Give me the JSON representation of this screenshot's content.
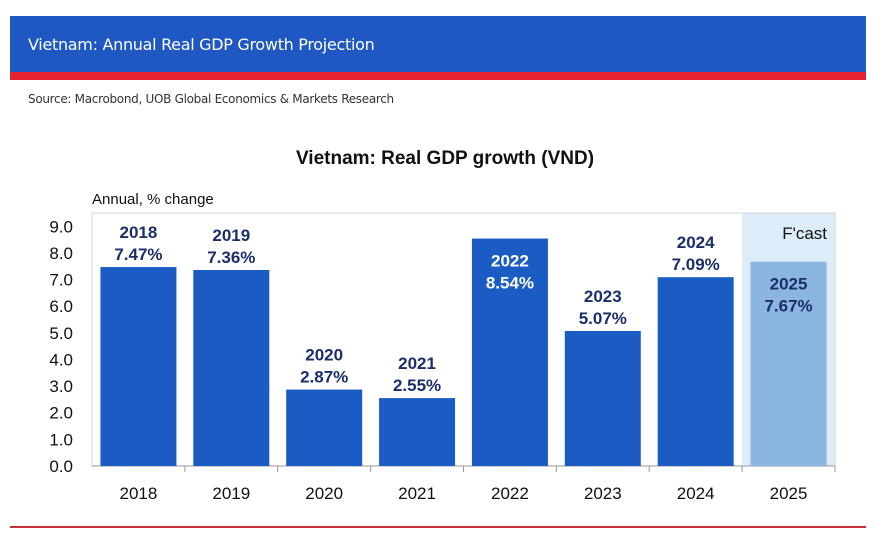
{
  "header": {
    "title": "Vietnam: Annual Real GDP Growth Projection",
    "source": "Source: Macrobond, UOB Global Economics & Markets Research"
  },
  "colors": {
    "banner": "#1f57c3",
    "accent_red": "#e4232e",
    "bar": "#1a5cc4",
    "forecast_bar": "#8ab6e0",
    "forecast_shade": "#dcecf8",
    "label_dark": "#1b2e6b"
  },
  "chart_data": {
    "type": "bar",
    "title": "Vietnam: Real GDP growth (VND)",
    "ylabel": "Annual, % change",
    "xlabel": "",
    "categories": [
      "2018",
      "2019",
      "2020",
      "2021",
      "2022",
      "2023",
      "2024",
      "2025"
    ],
    "values": [
      7.47,
      7.36,
      2.87,
      2.55,
      8.54,
      5.07,
      7.09,
      7.67
    ],
    "data_labels": [
      "7.47%",
      "7.36%",
      "2.87%",
      "2.55%",
      "8.54%",
      "5.07%",
      "7.09%",
      "7.67%"
    ],
    "forecast_categories": [
      "2025"
    ],
    "forecast_label": "F'cast",
    "ylim": [
      0,
      9.5
    ],
    "yticks": [
      "0.0",
      "1.0",
      "2.0",
      "3.0",
      "4.0",
      "5.0",
      "6.0",
      "7.0",
      "8.0",
      "9.0"
    ],
    "grid": false,
    "legend": "none"
  }
}
